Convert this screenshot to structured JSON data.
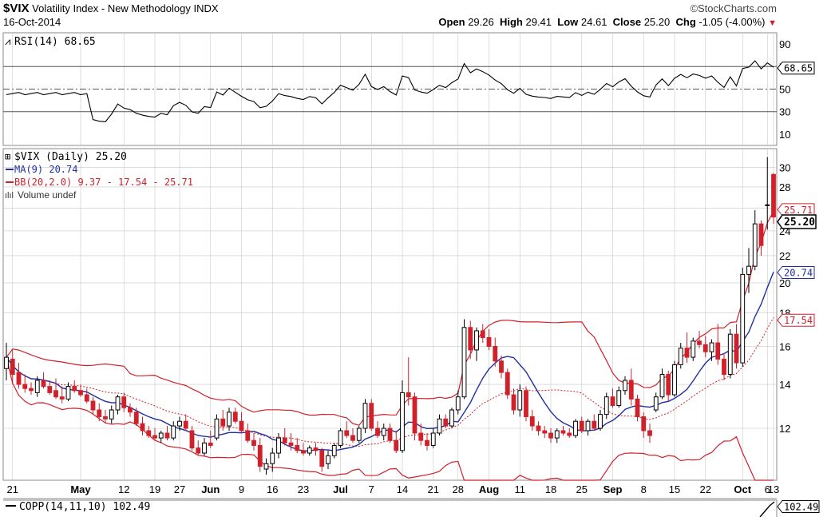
{
  "header": {
    "symbol": "$VIX",
    "name": "Volatility Index - New Methodology",
    "exchange": "INDX",
    "date": "16-Oct-2014",
    "site": "©StockCharts.com",
    "open_label": "Open",
    "open": "29.26",
    "high_label": "High",
    "high": "29.41",
    "low_label": "Low",
    "low": "24.61",
    "close_label": "Close",
    "close": "25.20",
    "chg_label": "Chg",
    "chg": "-1.05 (-4.00%)"
  },
  "rsi_panel": {
    "label": "RSI(14) 68.65",
    "last_value_tag": "68.65"
  },
  "price_panel": {
    "legend": [
      {
        "text": "$VIX (Daily) 25.20",
        "color": "#000000"
      },
      {
        "text": "MA(9) 20.74",
        "color": "#1f2fa0"
      },
      {
        "text": "BB(20,2.0) 9.37 - 17.54 - 25.71",
        "color": "#d0202a"
      },
      {
        "text": "Volume undef",
        "color": "#333333"
      }
    ],
    "tags": {
      "close": "25.20",
      "upper": "25.71",
      "ma": "20.74",
      "middle": "17.54"
    }
  },
  "copp_panel": {
    "label": "COPP(14,11,10) 102.49",
    "last_value_tag": "102.49"
  },
  "colors": {
    "up": "#000000",
    "down": "#d0202a",
    "ma": "#1f2fa0",
    "bb": "#d0202a",
    "grid": "#c8c8c8",
    "rsi": "#000000",
    "copp": "#000000"
  },
  "chart_data": {
    "type": "candlestick",
    "x_tick_labels": [
      "21",
      "May",
      "12",
      "19",
      "27",
      "Jun",
      "9",
      "16",
      "23",
      "Jul",
      "7",
      "14",
      "21",
      "28",
      "Aug",
      "11",
      "18",
      "25",
      "Sep",
      "8",
      "15",
      "22",
      "Oct",
      "6",
      "13"
    ],
    "price_ticks": [
      12,
      14,
      16,
      18,
      20,
      22,
      24,
      26,
      28,
      30
    ],
    "price_range": [
      10,
      31.5
    ],
    "rsi_ticks": [
      10,
      30,
      50,
      70,
      90
    ],
    "rsi_range": [
      0,
      100
    ],
    "rsi_guides": [
      30,
      50,
      70
    ],
    "price_log_scale": true,
    "candles": [
      {
        "o": 14.8,
        "h": 16.2,
        "l": 14.2,
        "c": 15.4
      },
      {
        "o": 15.3,
        "h": 15.8,
        "l": 14.0,
        "c": 14.5
      },
      {
        "o": 14.6,
        "h": 15.1,
        "l": 13.8,
        "c": 14.0
      },
      {
        "o": 14.0,
        "h": 14.5,
        "l": 13.6,
        "c": 13.8
      },
      {
        "o": 13.8,
        "h": 14.1,
        "l": 13.5,
        "c": 13.7
      },
      {
        "o": 13.6,
        "h": 14.4,
        "l": 13.4,
        "c": 14.2
      },
      {
        "o": 14.2,
        "h": 14.6,
        "l": 13.8,
        "c": 13.9
      },
      {
        "o": 13.9,
        "h": 14.2,
        "l": 13.5,
        "c": 13.6
      },
      {
        "o": 13.7,
        "h": 14.3,
        "l": 13.3,
        "c": 13.4
      },
      {
        "o": 13.4,
        "h": 13.9,
        "l": 13.1,
        "c": 13.3
      },
      {
        "o": 13.3,
        "h": 14.1,
        "l": 13.2,
        "c": 13.9
      },
      {
        "o": 13.9,
        "h": 14.2,
        "l": 13.6,
        "c": 13.7
      },
      {
        "o": 13.7,
        "h": 14.0,
        "l": 13.4,
        "c": 13.5
      },
      {
        "o": 13.5,
        "h": 13.8,
        "l": 13.1,
        "c": 13.2
      },
      {
        "o": 13.2,
        "h": 13.4,
        "l": 12.6,
        "c": 12.8
      },
      {
        "o": 12.8,
        "h": 13.1,
        "l": 12.3,
        "c": 12.5
      },
      {
        "o": 12.5,
        "h": 12.8,
        "l": 12.2,
        "c": 12.4
      },
      {
        "o": 12.4,
        "h": 13.0,
        "l": 12.2,
        "c": 12.8
      },
      {
        "o": 12.8,
        "h": 13.5,
        "l": 12.6,
        "c": 13.4
      },
      {
        "o": 13.4,
        "h": 13.6,
        "l": 12.7,
        "c": 12.9
      },
      {
        "o": 12.9,
        "h": 13.1,
        "l": 12.5,
        "c": 12.7
      },
      {
        "o": 12.7,
        "h": 12.9,
        "l": 12.1,
        "c": 12.2
      },
      {
        "o": 12.2,
        "h": 12.5,
        "l": 11.7,
        "c": 11.9
      },
      {
        "o": 11.9,
        "h": 12.1,
        "l": 11.6,
        "c": 11.7
      },
      {
        "o": 11.7,
        "h": 12.0,
        "l": 11.5,
        "c": 11.6
      },
      {
        "o": 11.6,
        "h": 11.9,
        "l": 11.4,
        "c": 11.8
      },
      {
        "o": 11.8,
        "h": 12.1,
        "l": 11.5,
        "c": 11.6
      },
      {
        "o": 11.6,
        "h": 12.3,
        "l": 11.5,
        "c": 12.1
      },
      {
        "o": 12.1,
        "h": 12.5,
        "l": 11.9,
        "c": 12.3
      },
      {
        "o": 12.3,
        "h": 12.6,
        "l": 11.9,
        "c": 12.0
      },
      {
        "o": 11.9,
        "h": 12.1,
        "l": 11.1,
        "c": 11.2
      },
      {
        "o": 11.2,
        "h": 11.5,
        "l": 10.9,
        "c": 11.0
      },
      {
        "o": 11.0,
        "h": 11.6,
        "l": 10.9,
        "c": 11.4
      },
      {
        "o": 11.4,
        "h": 11.9,
        "l": 11.2,
        "c": 11.3
      },
      {
        "o": 11.6,
        "h": 12.6,
        "l": 11.5,
        "c": 12.4
      },
      {
        "o": 12.4,
        "h": 12.8,
        "l": 11.9,
        "c": 12.1
      },
      {
        "o": 12.1,
        "h": 12.9,
        "l": 11.9,
        "c": 12.7
      },
      {
        "o": 12.7,
        "h": 12.9,
        "l": 12.2,
        "c": 12.3
      },
      {
        "o": 12.3,
        "h": 12.7,
        "l": 11.8,
        "c": 11.9
      },
      {
        "o": 11.9,
        "h": 12.2,
        "l": 11.4,
        "c": 11.5
      },
      {
        "o": 11.5,
        "h": 11.8,
        "l": 11.1,
        "c": 11.3
      },
      {
        "o": 11.3,
        "h": 11.6,
        "l": 10.3,
        "c": 10.5
      },
      {
        "o": 10.4,
        "h": 10.8,
        "l": 10.2,
        "c": 10.6
      },
      {
        "o": 10.6,
        "h": 11.2,
        "l": 10.3,
        "c": 11.0
      },
      {
        "o": 11.0,
        "h": 11.8,
        "l": 10.8,
        "c": 11.6
      },
      {
        "o": 11.6,
        "h": 12.0,
        "l": 11.3,
        "c": 11.4
      },
      {
        "o": 11.4,
        "h": 11.8,
        "l": 11.1,
        "c": 11.3
      },
      {
        "o": 11.3,
        "h": 11.6,
        "l": 11.0,
        "c": 11.1
      },
      {
        "o": 11.1,
        "h": 11.4,
        "l": 10.9,
        "c": 11.0
      },
      {
        "o": 11.0,
        "h": 11.3,
        "l": 10.9,
        "c": 11.2
      },
      {
        "o": 11.2,
        "h": 11.4,
        "l": 10.9,
        "c": 11.1
      },
      {
        "o": 11.1,
        "h": 11.2,
        "l": 10.3,
        "c": 10.5
      },
      {
        "o": 10.6,
        "h": 11.1,
        "l": 10.4,
        "c": 10.9
      },
      {
        "o": 10.9,
        "h": 11.4,
        "l": 10.8,
        "c": 11.3
      },
      {
        "o": 11.3,
        "h": 12.0,
        "l": 11.2,
        "c": 11.9
      },
      {
        "o": 11.9,
        "h": 12.3,
        "l": 11.6,
        "c": 11.7
      },
      {
        "o": 11.7,
        "h": 12.0,
        "l": 11.4,
        "c": 11.5
      },
      {
        "o": 11.5,
        "h": 12.1,
        "l": 11.4,
        "c": 12.0
      },
      {
        "o": 12.0,
        "h": 13.3,
        "l": 11.8,
        "c": 13.1
      },
      {
        "o": 13.1,
        "h": 13.3,
        "l": 11.9,
        "c": 12.0
      },
      {
        "o": 12.0,
        "h": 12.3,
        "l": 11.6,
        "c": 11.7
      },
      {
        "o": 11.7,
        "h": 12.2,
        "l": 11.5,
        "c": 12.0
      },
      {
        "o": 12.0,
        "h": 12.2,
        "l": 11.4,
        "c": 11.5
      },
      {
        "o": 11.5,
        "h": 11.9,
        "l": 11.0,
        "c": 11.1
      },
      {
        "o": 11.1,
        "h": 14.2,
        "l": 11.0,
        "c": 13.6
      },
      {
        "o": 13.6,
        "h": 15.4,
        "l": 13.0,
        "c": 13.4
      },
      {
        "o": 13.4,
        "h": 13.6,
        "l": 11.5,
        "c": 11.8
      },
      {
        "o": 11.8,
        "h": 12.2,
        "l": 11.3,
        "c": 11.5
      },
      {
        "o": 11.5,
        "h": 11.8,
        "l": 11.1,
        "c": 11.3
      },
      {
        "o": 11.3,
        "h": 12.0,
        "l": 11.2,
        "c": 11.8
      },
      {
        "o": 11.8,
        "h": 12.6,
        "l": 11.7,
        "c": 12.4
      },
      {
        "o": 12.4,
        "h": 12.6,
        "l": 12.0,
        "c": 12.1
      },
      {
        "o": 12.1,
        "h": 12.9,
        "l": 12.0,
        "c": 12.8
      },
      {
        "o": 12.8,
        "h": 13.7,
        "l": 12.6,
        "c": 13.4
      },
      {
        "o": 13.4,
        "h": 17.6,
        "l": 13.3,
        "c": 17.1
      },
      {
        "o": 17.1,
        "h": 17.5,
        "l": 15.3,
        "c": 15.8
      },
      {
        "o": 15.8,
        "h": 17.1,
        "l": 15.2,
        "c": 16.9
      },
      {
        "o": 16.9,
        "h": 17.3,
        "l": 16.2,
        "c": 16.5
      },
      {
        "o": 16.5,
        "h": 17.0,
        "l": 15.8,
        "c": 16.0
      },
      {
        "o": 16.0,
        "h": 16.5,
        "l": 14.9,
        "c": 15.2
      },
      {
        "o": 15.2,
        "h": 15.5,
        "l": 14.3,
        "c": 14.6
      },
      {
        "o": 14.6,
        "h": 14.8,
        "l": 13.3,
        "c": 13.5
      },
      {
        "o": 13.5,
        "h": 13.8,
        "l": 12.6,
        "c": 12.8
      },
      {
        "o": 12.8,
        "h": 14.0,
        "l": 12.5,
        "c": 13.7
      },
      {
        "o": 13.7,
        "h": 13.9,
        "l": 12.3,
        "c": 12.5
      },
      {
        "o": 12.5,
        "h": 12.8,
        "l": 11.9,
        "c": 12.1
      },
      {
        "o": 12.1,
        "h": 12.3,
        "l": 11.7,
        "c": 11.9
      },
      {
        "o": 11.9,
        "h": 12.1,
        "l": 11.6,
        "c": 11.8
      },
      {
        "o": 11.8,
        "h": 12.0,
        "l": 11.4,
        "c": 11.6
      },
      {
        "o": 11.6,
        "h": 12.0,
        "l": 11.4,
        "c": 11.9
      },
      {
        "o": 11.9,
        "h": 12.1,
        "l": 11.7,
        "c": 11.8
      },
      {
        "o": 11.8,
        "h": 12.0,
        "l": 11.6,
        "c": 11.7
      },
      {
        "o": 11.7,
        "h": 12.4,
        "l": 11.6,
        "c": 12.3
      },
      {
        "o": 12.3,
        "h": 12.5,
        "l": 11.8,
        "c": 11.9
      },
      {
        "o": 11.9,
        "h": 12.4,
        "l": 11.7,
        "c": 12.3
      },
      {
        "o": 12.3,
        "h": 12.6,
        "l": 11.9,
        "c": 12.0
      },
      {
        "o": 12.0,
        "h": 12.8,
        "l": 11.9,
        "c": 12.6
      },
      {
        "o": 12.6,
        "h": 13.6,
        "l": 12.4,
        "c": 13.4
      },
      {
        "o": 13.4,
        "h": 13.8,
        "l": 12.9,
        "c": 13.0
      },
      {
        "o": 13.0,
        "h": 13.9,
        "l": 12.9,
        "c": 13.7
      },
      {
        "o": 13.7,
        "h": 14.4,
        "l": 13.5,
        "c": 14.2
      },
      {
        "o": 14.2,
        "h": 14.8,
        "l": 13.0,
        "c": 13.3
      },
      {
        "o": 13.3,
        "h": 13.5,
        "l": 12.3,
        "c": 12.5
      },
      {
        "o": 12.5,
        "h": 12.7,
        "l": 11.6,
        "c": 11.9
      },
      {
        "o": 11.9,
        "h": 12.2,
        "l": 11.4,
        "c": 11.7
      },
      {
        "o": 12.8,
        "h": 13.6,
        "l": 12.7,
        "c": 13.4
      },
      {
        "o": 13.4,
        "h": 14.8,
        "l": 13.3,
        "c": 14.5
      },
      {
        "o": 14.5,
        "h": 14.7,
        "l": 13.2,
        "c": 13.5
      },
      {
        "o": 13.5,
        "h": 15.2,
        "l": 13.4,
        "c": 15.0
      },
      {
        "o": 15.0,
        "h": 16.2,
        "l": 14.8,
        "c": 15.9
      },
      {
        "o": 15.9,
        "h": 16.8,
        "l": 15.1,
        "c": 15.4
      },
      {
        "o": 15.4,
        "h": 16.5,
        "l": 15.2,
        "c": 16.3
      },
      {
        "o": 16.3,
        "h": 16.9,
        "l": 15.9,
        "c": 16.1
      },
      {
        "o": 16.1,
        "h": 16.6,
        "l": 15.4,
        "c": 15.7
      },
      {
        "o": 15.7,
        "h": 16.4,
        "l": 15.2,
        "c": 16.2
      },
      {
        "o": 16.2,
        "h": 17.3,
        "l": 15.0,
        "c": 15.3
      },
      {
        "o": 15.3,
        "h": 15.6,
        "l": 14.2,
        "c": 14.5
      },
      {
        "o": 14.5,
        "h": 17.0,
        "l": 14.3,
        "c": 16.7
      },
      {
        "o": 16.7,
        "h": 17.3,
        "l": 14.8,
        "c": 15.1
      },
      {
        "o": 15.1,
        "h": 21.1,
        "l": 14.9,
        "c": 20.6
      },
      {
        "o": 20.6,
        "h": 22.6,
        "l": 19.3,
        "c": 21.2
      },
      {
        "o": 21.2,
        "h": 25.8,
        "l": 20.9,
        "c": 24.6
      },
      {
        "o": 24.6,
        "h": 24.9,
        "l": 22.0,
        "c": 22.8
      },
      {
        "o": 26.3,
        "h": 31.1,
        "l": 24.1,
        "c": 26.3
      },
      {
        "o": 29.26,
        "h": 29.41,
        "l": 24.61,
        "c": 25.2
      }
    ],
    "ma_period": 9,
    "bb_period": 20,
    "bb_mult": 2.0,
    "bb_upper_last": 25.71,
    "bb_middle_last": 17.54,
    "bb_lower_last": 9.37,
    "ma_last": 20.74,
    "rsi_last": 68.65,
    "copp_last": 102.49
  }
}
